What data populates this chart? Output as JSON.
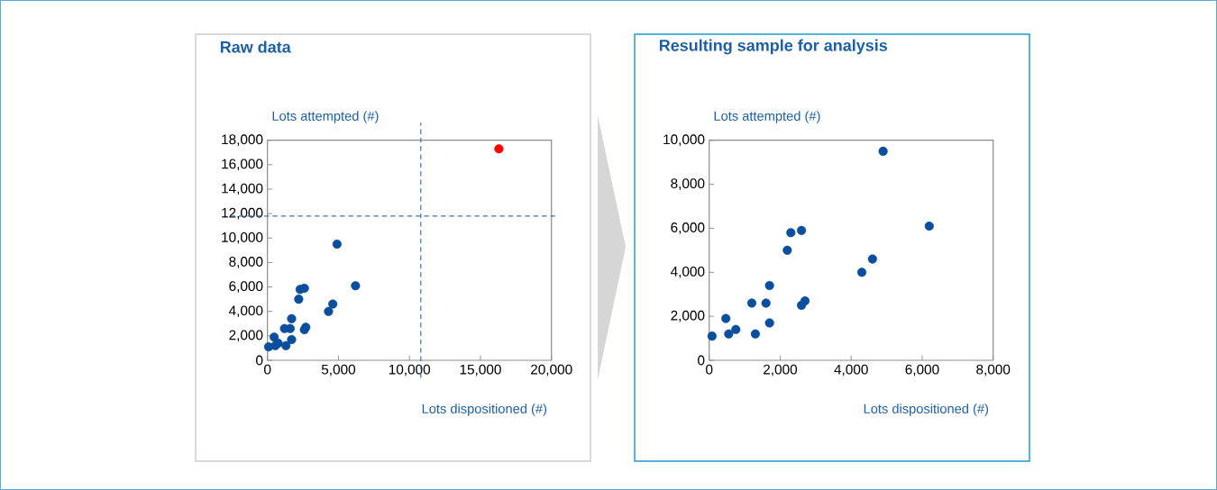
{
  "chart_data": [
    {
      "type": "scatter",
      "title": "Raw data",
      "xlabel": "Lots dispositioned (#)",
      "ylabel": "Lots attempted (#)",
      "marker": "circle",
      "xlim": [
        0,
        20000
      ],
      "ylim": [
        0,
        18000
      ],
      "xticks": [
        {
          "value": 0,
          "label": "0"
        },
        {
          "value": 5000,
          "label": "5,000"
        },
        {
          "value": 10000,
          "label": "10,000"
        },
        {
          "value": 15000,
          "label": "15,000"
        },
        {
          "value": 20000,
          "label": "20,000"
        }
      ],
      "yticks": [
        {
          "value": 0,
          "label": "0"
        },
        {
          "value": 2000,
          "label": "2,000"
        },
        {
          "value": 4000,
          "label": "4,000"
        },
        {
          "value": 6000,
          "label": "6,000"
        },
        {
          "value": 8000,
          "label": "8,000"
        },
        {
          "value": 10000,
          "label": "10,000"
        },
        {
          "value": 12000,
          "label": "12,000"
        },
        {
          "value": 14000,
          "label": "14,000"
        },
        {
          "value": 16000,
          "label": "16,000"
        },
        {
          "value": 18000,
          "label": "18,000"
        }
      ],
      "ref_lines": [
        {
          "axis": "x",
          "value": 10800,
          "color": "#3a75b8",
          "line_style": "dashed"
        },
        {
          "axis": "y",
          "value": 11800,
          "color": "#3a75b8",
          "line_style": "dashed"
        }
      ],
      "series": [
        {
          "color": "#0a4f9e",
          "x": [
            80,
            470,
            550,
            750,
            1200,
            1300,
            1600,
            1700,
            1700,
            2200,
            2300,
            2600,
            2600,
            2700,
            4300,
            4600,
            4900,
            6200
          ],
          "values": [
            1100,
            1900,
            1200,
            1400,
            2600,
            1200,
            2600,
            3400,
            1700,
            5000,
            5800,
            5900,
            2500,
            2700,
            4000,
            4600,
            9500,
            6100
          ]
        },
        {
          "color": "#ff0000",
          "x": [
            16300
          ],
          "values": [
            17300
          ]
        }
      ]
    },
    {
      "type": "scatter",
      "title": "Resulting sample for analysis",
      "xlabel": "Lots dispositioned (#)",
      "ylabel": "Lots attempted (#)",
      "marker": "circle",
      "xlim": [
        0,
        8000
      ],
      "ylim": [
        0,
        10000
      ],
      "xticks": [
        {
          "value": 0,
          "label": "0"
        },
        {
          "value": 2000,
          "label": "2,000"
        },
        {
          "value": 4000,
          "label": "4,000"
        },
        {
          "value": 6000,
          "label": "6,000"
        },
        {
          "value": 8000,
          "label": "8,000"
        }
      ],
      "yticks": [
        {
          "value": 0,
          "label": "0"
        },
        {
          "value": 2000,
          "label": "2,000"
        },
        {
          "value": 4000,
          "label": "4,000"
        },
        {
          "value": 6000,
          "label": "6,000"
        },
        {
          "value": 8000,
          "label": "8,000"
        },
        {
          "value": 10000,
          "label": "10,000"
        }
      ],
      "series": [
        {
          "color": "#0a4f9e",
          "x": [
            80,
            470,
            550,
            750,
            1200,
            1300,
            1600,
            1700,
            1700,
            2200,
            2300,
            2600,
            2600,
            2700,
            4300,
            4600,
            4900,
            6200
          ],
          "values": [
            1100,
            1900,
            1200,
            1400,
            2600,
            1200,
            2600,
            3400,
            1700,
            5000,
            5800,
            5900,
            2500,
            2700,
            4000,
            4600,
            9500,
            6100
          ]
        }
      ]
    }
  ]
}
